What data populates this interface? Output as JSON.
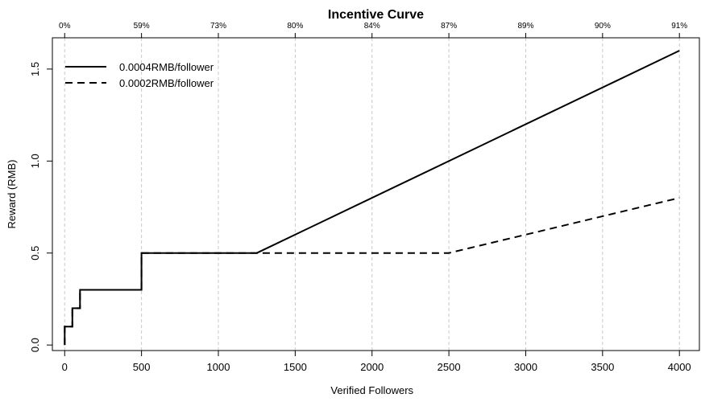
{
  "chart_data": {
    "type": "line",
    "title": "Incentive Curve",
    "xlabel": "Verified Followers",
    "ylabel": "Reward (RMB)",
    "xlim": [
      -80,
      4130
    ],
    "ylim": [
      -0.03,
      1.67
    ],
    "x_ticks": [
      0,
      500,
      1000,
      1500,
      2000,
      2500,
      3000,
      3500,
      4000
    ],
    "x_tick_labels": [
      "0",
      "500",
      "1000",
      "1500",
      "2000",
      "2500",
      "3000",
      "3500",
      "4000"
    ],
    "y_ticks": [
      0.0,
      0.5,
      1.0,
      1.5
    ],
    "y_tick_labels": [
      "0.0",
      "0.5",
      "1.0",
      "1.5"
    ],
    "top_axis_ticks": [
      0,
      500,
      1000,
      1500,
      2000,
      2500,
      3000,
      3500,
      4000
    ],
    "top_axis_labels": [
      "0%",
      "59%",
      "73%",
      "80%",
      "84%",
      "87%",
      "89%",
      "90%",
      "91%"
    ],
    "grid": "vertical dashed at x ticks",
    "legend_position": "top-left",
    "series": [
      {
        "name": "0.0004RMB/follower",
        "line_style": "solid",
        "color": "#000000",
        "points": [
          [
            0,
            0
          ],
          [
            0,
            0.1
          ],
          [
            50,
            0.1
          ],
          [
            50,
            0.2
          ],
          [
            100,
            0.2
          ],
          [
            100,
            0.3
          ],
          [
            500,
            0.3
          ],
          [
            500,
            0.5
          ],
          [
            1250,
            0.5
          ],
          [
            4000,
            1.6
          ]
        ]
      },
      {
        "name": "0.0002RMB/follower",
        "line_style": "dashed",
        "color": "#000000",
        "points": [
          [
            0,
            0
          ],
          [
            0,
            0.1
          ],
          [
            50,
            0.1
          ],
          [
            50,
            0.2
          ],
          [
            100,
            0.2
          ],
          [
            100,
            0.3
          ],
          [
            500,
            0.3
          ],
          [
            500,
            0.5
          ],
          [
            2500,
            0.5
          ],
          [
            4000,
            0.8
          ]
        ]
      }
    ]
  }
}
